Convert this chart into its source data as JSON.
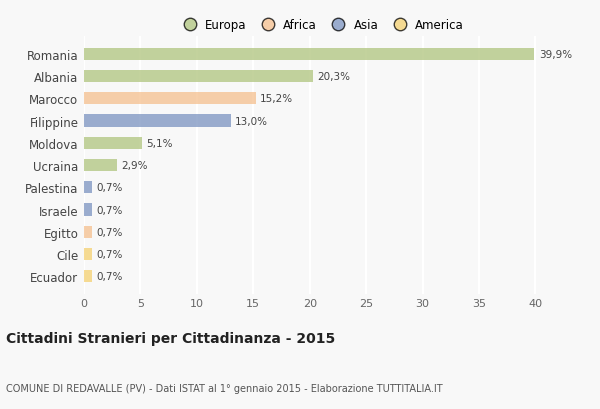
{
  "categories": [
    "Romania",
    "Albania",
    "Marocco",
    "Filippine",
    "Moldova",
    "Ucraina",
    "Palestina",
    "Israele",
    "Egitto",
    "Cile",
    "Ecuador"
  ],
  "values": [
    39.9,
    20.3,
    15.2,
    13.0,
    5.1,
    2.9,
    0.7,
    0.7,
    0.7,
    0.7,
    0.7
  ],
  "labels": [
    "39,9%",
    "20,3%",
    "15,2%",
    "13,0%",
    "5,1%",
    "2,9%",
    "0,7%",
    "0,7%",
    "0,7%",
    "0,7%",
    "0,7%"
  ],
  "colors": [
    "#afc47d",
    "#afc47d",
    "#f5bf8e",
    "#7b93c0",
    "#afc47d",
    "#afc47d",
    "#7b93c0",
    "#7b93c0",
    "#f5bf8e",
    "#f5d070",
    "#f5d070"
  ],
  "legend_labels": [
    "Europa",
    "Africa",
    "Asia",
    "America"
  ],
  "legend_colors": [
    "#afc47d",
    "#f5bf8e",
    "#7b93c0",
    "#f5d070"
  ],
  "xlim": [
    0,
    42
  ],
  "xticks": [
    0,
    5,
    10,
    15,
    20,
    25,
    30,
    35,
    40
  ],
  "title": "Cittadini Stranieri per Cittadinanza - 2015",
  "subtitle": "COMUNE DI REDAVALLE (PV) - Dati ISTAT al 1° gennaio 2015 - Elaborazione TUTTITALIA.IT",
  "bg_color": "#f8f8f8",
  "plot_bg": "#f8f8f8",
  "bar_alpha": 0.75,
  "bar_height": 0.55
}
